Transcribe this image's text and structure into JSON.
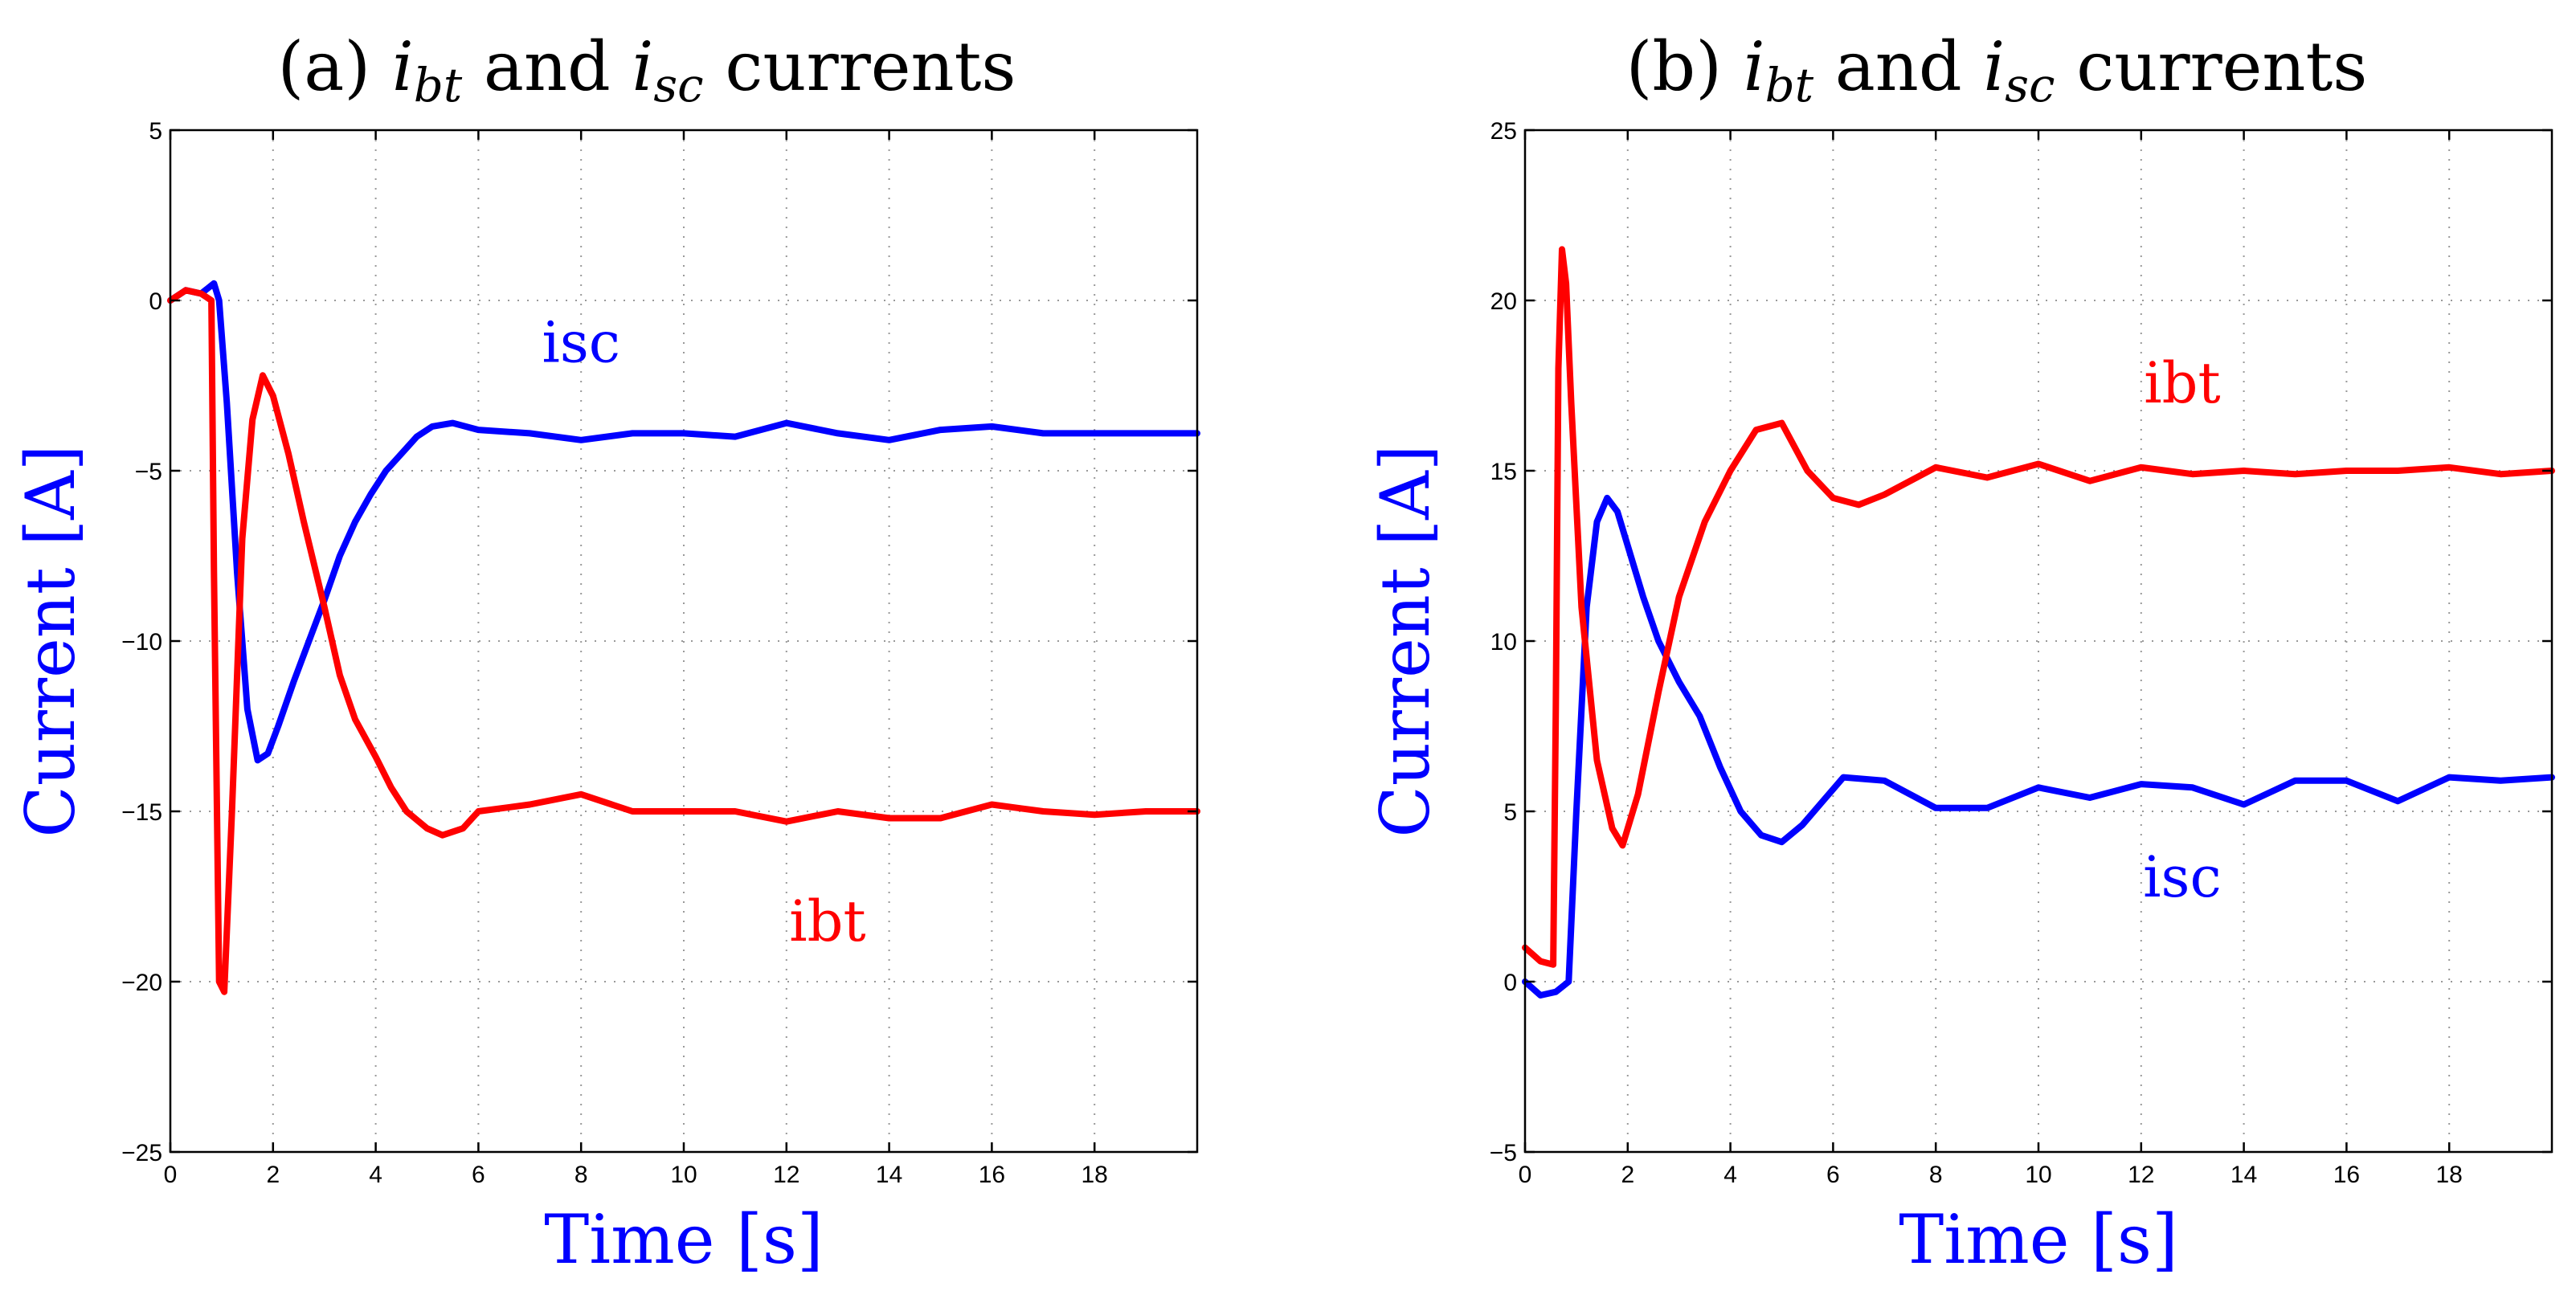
{
  "chart_data": [
    {
      "type": "line",
      "title_prefix": "(a)",
      "title_var1": "i",
      "title_sub1": "bt",
      "title_and": "and",
      "title_var2": "i",
      "title_sub2": "sc",
      "title_suffix": "currents",
      "xlabel": "Time [s]",
      "ylabel": "Current [A]",
      "xlim": [
        0,
        20
      ],
      "ylim": [
        -25,
        5
      ],
      "xticks": [
        0,
        2,
        4,
        6,
        8,
        10,
        12,
        14,
        16,
        18
      ],
      "yticks": [
        5,
        0,
        -5,
        -10,
        -15,
        -20,
        -25
      ],
      "grid": true,
      "series": [
        {
          "name": "isc",
          "color": "#0000ff",
          "x": [
            0,
            0.3,
            0.6,
            0.85,
            0.95,
            1.1,
            1.3,
            1.5,
            1.7,
            1.9,
            2.1,
            2.4,
            2.7,
            3.0,
            3.3,
            3.6,
            3.9,
            4.2,
            4.5,
            4.8,
            5.1,
            5.5,
            6,
            7,
            8,
            9,
            10,
            11,
            12,
            13,
            14,
            15,
            16,
            17,
            18,
            19,
            20
          ],
          "y": [
            0,
            0.3,
            0.2,
            0.5,
            0,
            -3,
            -8,
            -12,
            -13.5,
            -13.3,
            -12.5,
            -11.2,
            -10,
            -8.8,
            -7.5,
            -6.5,
            -5.7,
            -5.0,
            -4.5,
            -4.0,
            -3.7,
            -3.6,
            -3.8,
            -3.9,
            -4.1,
            -3.9,
            -3.9,
            -4.0,
            -3.6,
            -3.9,
            -4.1,
            -3.8,
            -3.7,
            -3.9,
            -3.9,
            -3.9,
            -3.9
          ]
        },
        {
          "name": "ibt",
          "color": "#ff0000",
          "x": [
            0,
            0.3,
            0.6,
            0.8,
            0.85,
            0.95,
            1.05,
            1.2,
            1.4,
            1.6,
            1.8,
            2.0,
            2.3,
            2.6,
            3.0,
            3.3,
            3.6,
            4.0,
            4.3,
            4.6,
            5.0,
            5.3,
            5.7,
            6,
            7,
            8,
            9,
            10,
            11,
            12,
            13,
            14,
            15,
            16,
            17,
            18,
            19,
            20
          ],
          "y": [
            0,
            0.3,
            0.2,
            0,
            -8,
            -20,
            -20.3,
            -15,
            -7,
            -3.5,
            -2.2,
            -2.8,
            -4.5,
            -6.5,
            -9,
            -11,
            -12.3,
            -13.4,
            -14.3,
            -15.0,
            -15.5,
            -15.7,
            -15.5,
            -15.0,
            -14.8,
            -14.5,
            -15.0,
            -15.0,
            -15.0,
            -15.3,
            -15.0,
            -15.2,
            -15.2,
            -14.8,
            -15.0,
            -15.1,
            -15.0,
            -15.0
          ]
        }
      ],
      "annotations": [
        {
          "text": "isc",
          "x": 8.0,
          "y": -1.8,
          "color": "#0000ff"
        },
        {
          "text": "ibt",
          "x": 12.8,
          "y": -18.8,
          "color": "#ff0000"
        }
      ]
    },
    {
      "type": "line",
      "title_prefix": "(b)",
      "title_var1": "i",
      "title_sub1": "bt",
      "title_and": "and",
      "title_var2": "i",
      "title_sub2": "sc",
      "title_suffix": "currents",
      "xlabel": "Time [s]",
      "ylabel": "Current [A]",
      "xlim": [
        0,
        20
      ],
      "ylim": [
        -5,
        25
      ],
      "xticks": [
        0,
        2,
        4,
        6,
        8,
        10,
        12,
        14,
        16,
        18
      ],
      "yticks": [
        25,
        20,
        15,
        10,
        5,
        0,
        -5
      ],
      "grid": true,
      "series": [
        {
          "name": "isc",
          "color": "#0000ff",
          "x": [
            0,
            0.3,
            0.6,
            0.85,
            1.0,
            1.2,
            1.4,
            1.6,
            1.8,
            2.0,
            2.3,
            2.6,
            3.0,
            3.4,
            3.8,
            4.2,
            4.6,
            5.0,
            5.4,
            5.8,
            6.2,
            7,
            8,
            9,
            10,
            11,
            12,
            13,
            14,
            15,
            16,
            17,
            18,
            19,
            20
          ],
          "y": [
            0,
            -0.4,
            -0.3,
            0,
            5,
            11,
            13.5,
            14.2,
            13.8,
            12.8,
            11.3,
            10,
            8.8,
            7.8,
            6.3,
            5.0,
            4.3,
            4.1,
            4.6,
            5.3,
            6.0,
            5.9,
            5.1,
            5.1,
            5.7,
            5.4,
            5.8,
            5.7,
            5.2,
            5.9,
            5.9,
            5.3,
            6.0,
            5.9,
            6.0
          ]
        },
        {
          "name": "ibt",
          "color": "#ff0000",
          "x": [
            0,
            0.3,
            0.55,
            0.6,
            0.65,
            0.72,
            0.8,
            0.9,
            1.1,
            1.4,
            1.7,
            1.9,
            2.2,
            2.6,
            3.0,
            3.5,
            4.0,
            4.5,
            5.0,
            5.5,
            6.0,
            6.5,
            7,
            8,
            9,
            10,
            11,
            12,
            13,
            14,
            15,
            16,
            17,
            18,
            19,
            20
          ],
          "y": [
            1,
            0.6,
            0.5,
            8,
            18,
            21.5,
            20.5,
            17,
            11,
            6.5,
            4.5,
            4,
            5.5,
            8.5,
            11.3,
            13.5,
            15,
            16.2,
            16.4,
            15.0,
            14.2,
            14.0,
            14.3,
            15.1,
            14.8,
            15.2,
            14.7,
            15.1,
            14.9,
            15.0,
            14.9,
            15.0,
            15.0,
            15.1,
            14.9,
            15.0
          ]
        }
      ],
      "annotations": [
        {
          "text": "ibt",
          "x": 12.8,
          "y": 17.0,
          "color": "#ff0000"
        },
        {
          "text": "isc",
          "x": 12.8,
          "y": 2.5,
          "color": "#0000ff"
        }
      ]
    }
  ]
}
